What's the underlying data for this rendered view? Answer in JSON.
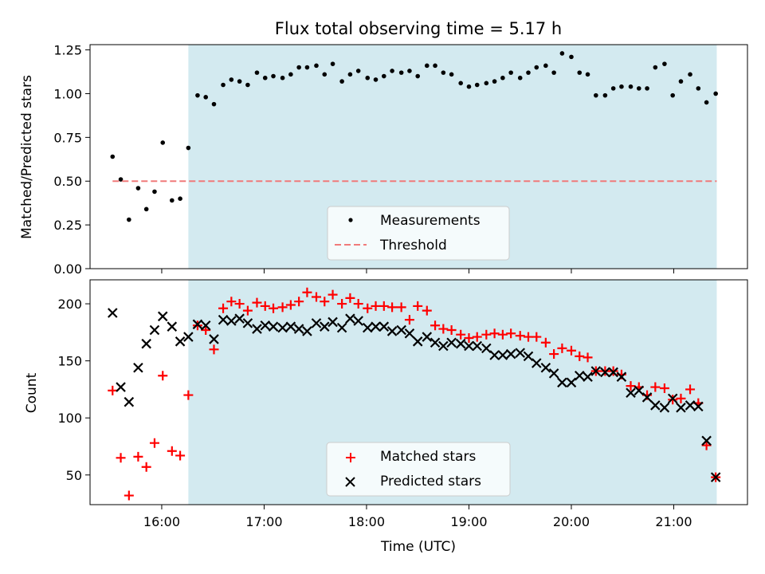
{
  "chart_data": {
    "title": "Flux total observing time = 5.17 h",
    "shared_x": {
      "label": "Time (UTC)",
      "unit": "hours UTC",
      "range": [
        15.3,
        21.72
      ],
      "ticks": [
        16,
        17,
        18,
        19,
        20,
        21
      ],
      "tick_labels": [
        "16:00",
        "17:00",
        "18:00",
        "19:00",
        "20:00",
        "21:00"
      ]
    },
    "shaded_interval": {
      "x": [
        16.26,
        21.42
      ],
      "color": "#d3eaf0"
    },
    "panels": [
      {
        "type": "scatter",
        "ylabel": "Matched/Predicted stars",
        "ylim": [
          0,
          1.28
        ],
        "yticks": [
          0.0,
          0.25,
          0.5,
          0.75,
          1.0,
          1.25
        ],
        "ytick_labels": [
          "0.00",
          "0.25",
          "0.50",
          "0.75",
          "1.00",
          "1.25"
        ],
        "legend": {
          "placement": "lower-center"
        },
        "series": [
          {
            "name": "Measurements",
            "marker": "dot",
            "color": "#000000",
            "x": [
              15.52,
              15.6,
              15.68,
              15.77,
              15.85,
              15.93,
              16.01,
              16.1,
              16.18,
              16.26,
              16.35,
              16.43,
              16.51,
              16.6,
              16.68,
              16.76,
              16.84,
              16.93,
              17.01,
              17.09,
              17.18,
              17.26,
              17.34,
              17.42,
              17.51,
              17.59,
              17.67,
              17.76,
              17.84,
              17.92,
              18.01,
              18.09,
              18.17,
              18.25,
              18.34,
              18.42,
              18.5,
              18.59,
              18.67,
              18.75,
              18.83,
              18.92,
              19.0,
              19.08,
              19.17,
              19.25,
              19.33,
              19.41,
              19.5,
              19.58,
              19.66,
              19.75,
              19.83,
              19.91,
              20.0,
              20.08,
              20.16,
              20.24,
              20.33,
              20.41,
              20.49,
              20.58,
              20.66,
              20.74,
              20.82,
              20.91,
              20.99,
              21.07,
              21.16,
              21.24,
              21.32,
              21.41
            ],
            "y": [
              0.64,
              0.51,
              0.28,
              0.46,
              0.34,
              0.44,
              0.72,
              0.39,
              0.4,
              0.69,
              0.99,
              0.98,
              0.94,
              1.05,
              1.08,
              1.07,
              1.05,
              1.12,
              1.09,
              1.1,
              1.09,
              1.11,
              1.15,
              1.15,
              1.16,
              1.11,
              1.17,
              1.07,
              1.11,
              1.13,
              1.09,
              1.08,
              1.1,
              1.13,
              1.12,
              1.13,
              1.1,
              1.16,
              1.16,
              1.12,
              1.11,
              1.06,
              1.04,
              1.05,
              1.06,
              1.07,
              1.09,
              1.12,
              1.09,
              1.12,
              1.15,
              1.16,
              1.12,
              1.23,
              1.21,
              1.12,
              1.11,
              0.99,
              0.99,
              1.03,
              1.04,
              1.04,
              1.03,
              1.03,
              1.15,
              1.17,
              0.99,
              1.07,
              1.11,
              1.03,
              0.95,
              1.0
            ]
          },
          {
            "name": "Threshold",
            "marker": "dashed-line",
            "color": "#f07a7a",
            "x": [
              15.52,
              21.42
            ],
            "y": [
              0.5,
              0.5
            ]
          }
        ]
      },
      {
        "type": "scatter",
        "ylabel": "Count",
        "ylim": [
          24,
          221
        ],
        "yticks": [
          50,
          100,
          150,
          200
        ],
        "ytick_labels": [
          "50",
          "100",
          "150",
          "200"
        ],
        "legend": {
          "placement": "lower-center"
        },
        "series": [
          {
            "name": "Matched stars",
            "marker": "plus",
            "color": "#ff0000",
            "x": [
              15.52,
              15.6,
              15.68,
              15.77,
              15.85,
              15.93,
              16.01,
              16.1,
              16.18,
              16.26,
              16.35,
              16.43,
              16.51,
              16.6,
              16.68,
              16.76,
              16.84,
              16.93,
              17.01,
              17.09,
              17.18,
              17.26,
              17.34,
              17.42,
              17.51,
              17.59,
              17.67,
              17.76,
              17.84,
              17.92,
              18.01,
              18.09,
              18.17,
              18.25,
              18.34,
              18.42,
              18.5,
              18.59,
              18.67,
              18.75,
              18.83,
              18.92,
              19.0,
              19.08,
              19.17,
              19.25,
              19.33,
              19.41,
              19.5,
              19.58,
              19.66,
              19.75,
              19.83,
              19.91,
              20.0,
              20.08,
              20.16,
              20.24,
              20.33,
              20.41,
              20.49,
              20.58,
              20.66,
              20.74,
              20.82,
              20.91,
              20.99,
              21.07,
              21.16,
              21.24,
              21.32,
              21.41
            ],
            "y": [
              124,
              65,
              32,
              66,
              57,
              78,
              137,
              71,
              67,
              120,
              181,
              177,
              160,
              196,
              202,
              200,
              194,
              201,
              198,
              196,
              197,
              199,
              202,
              210,
              206,
              202,
              208,
              200,
              205,
              200,
              196,
              198,
              198,
              197,
              197,
              186,
              198,
              194,
              181,
              178,
              177,
              173,
              170,
              171,
              173,
              174,
              173,
              174,
              172,
              171,
              171,
              166,
              156,
              161,
              159,
              154,
              153,
              141,
              141,
              141,
              138,
              128,
              127,
              120,
              127,
              126,
              116,
              117,
              125,
              113,
              76,
              48
            ]
          },
          {
            "name": "Predicted stars",
            "marker": "x",
            "color": "#000000",
            "x": [
              15.52,
              15.6,
              15.68,
              15.77,
              15.85,
              15.93,
              16.01,
              16.1,
              16.18,
              16.26,
              16.35,
              16.43,
              16.51,
              16.6,
              16.68,
              16.76,
              16.84,
              16.93,
              17.01,
              17.09,
              17.18,
              17.26,
              17.34,
              17.42,
              17.51,
              17.59,
              17.67,
              17.76,
              17.84,
              17.92,
              18.01,
              18.09,
              18.17,
              18.25,
              18.34,
              18.42,
              18.5,
              18.59,
              18.67,
              18.75,
              18.83,
              18.92,
              19.0,
              19.08,
              19.17,
              19.25,
              19.33,
              19.41,
              19.5,
              19.58,
              19.66,
              19.75,
              19.83,
              19.91,
              20.0,
              20.08,
              20.16,
              20.24,
              20.33,
              20.41,
              20.49,
              20.58,
              20.66,
              20.74,
              20.82,
              20.91,
              20.99,
              21.07,
              21.16,
              21.24,
              21.32,
              21.41
            ],
            "y": [
              192,
              127,
              114,
              144,
              165,
              177,
              189,
              180,
              167,
              171,
              182,
              181,
              169,
              186,
              185,
              187,
              183,
              178,
              181,
              180,
              179,
              180,
              178,
              176,
              183,
              180,
              184,
              179,
              187,
              185,
              179,
              180,
              180,
              176,
              177,
              174,
              167,
              171,
              166,
              163,
              166,
              165,
              163,
              163,
              161,
              155,
              155,
              156,
              157,
              154,
              148,
              144,
              139,
              131,
              131,
              137,
              136,
              141,
              140,
              140,
              136,
              122,
              124,
              118,
              111,
              109,
              117,
              109,
              111,
              110,
              80,
              48
            ]
          }
        ]
      }
    ]
  }
}
